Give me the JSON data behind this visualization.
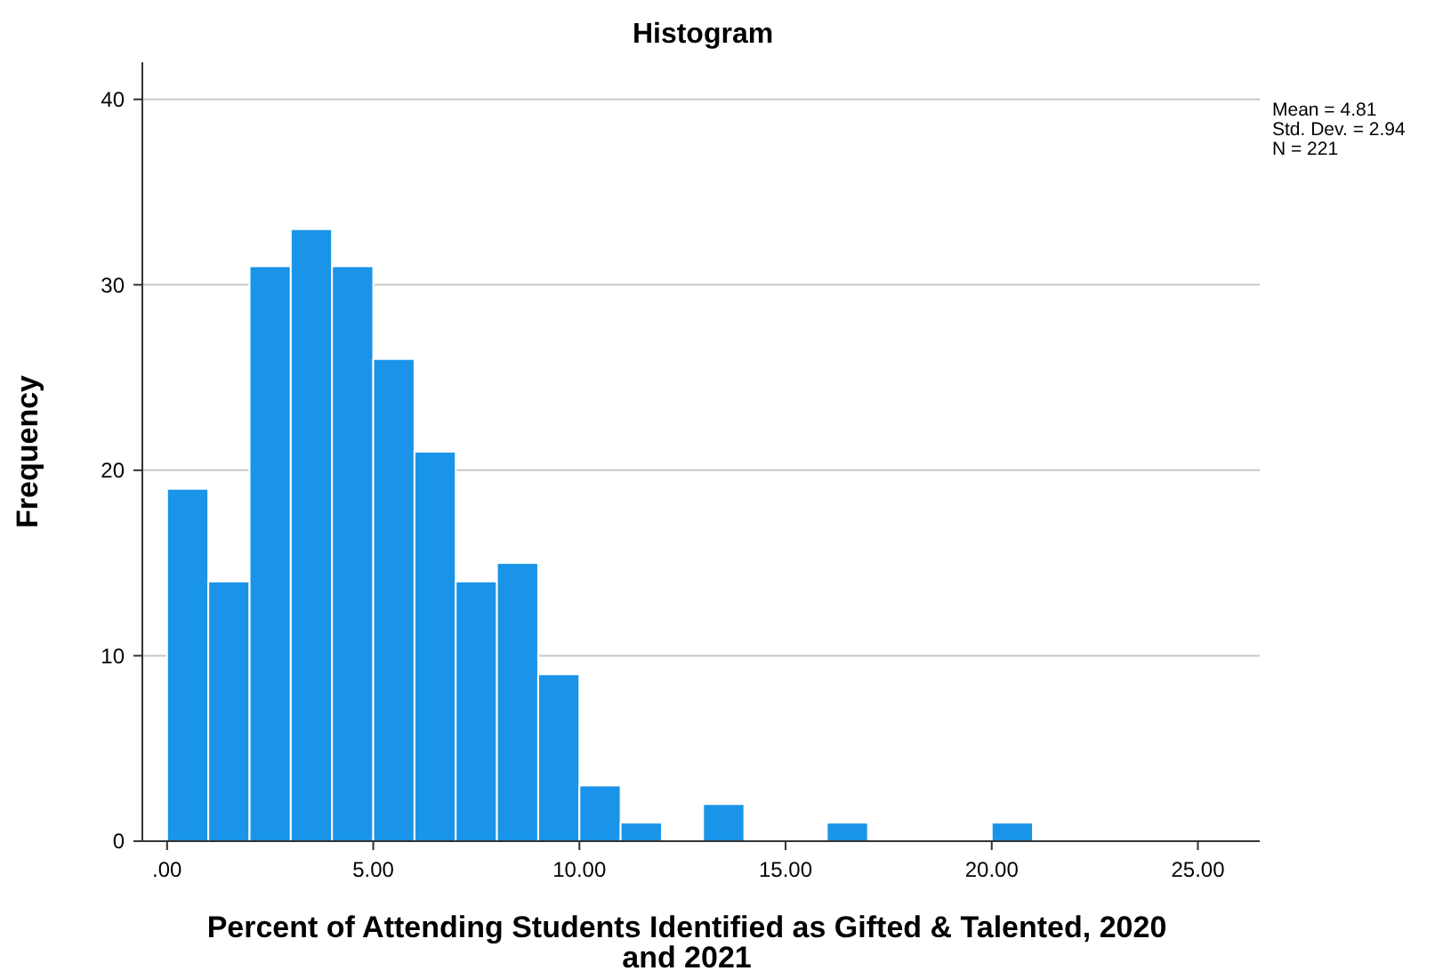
{
  "chart_data": {
    "type": "histogram",
    "title": "Histogram",
    "xlabel": "Percent of Attending Students Identified as Gifted & Talented, 2020 and 2021",
    "ylabel": "Frequency",
    "bins": [
      0,
      1,
      2,
      3,
      4,
      5,
      6,
      7,
      8,
      9,
      10,
      11,
      12,
      13,
      14,
      15,
      16,
      17,
      18,
      19,
      20,
      21
    ],
    "values": [
      19,
      14,
      31,
      33,
      31,
      26,
      21,
      14,
      15,
      9,
      3,
      1,
      0,
      2,
      0,
      0,
      1,
      0,
      0,
      0,
      1
    ],
    "color": "#1a94e8",
    "xlim": [
      -0.6,
      26.5
    ],
    "xticks": [
      {
        "value": 0,
        "label": ".00"
      },
      {
        "value": 5,
        "label": "5.00"
      },
      {
        "value": 10,
        "label": "10.00"
      },
      {
        "value": 15,
        "label": "15.00"
      },
      {
        "value": 20,
        "label": "20.00"
      },
      {
        "value": 25,
        "label": "25.00"
      }
    ],
    "ylim": [
      0,
      42
    ],
    "yticks": [
      0,
      10,
      20,
      30,
      40
    ],
    "grid": "y",
    "annotations": [
      "Mean = 4.81",
      "Std. Dev. = 2.94",
      "N = 221"
    ]
  }
}
